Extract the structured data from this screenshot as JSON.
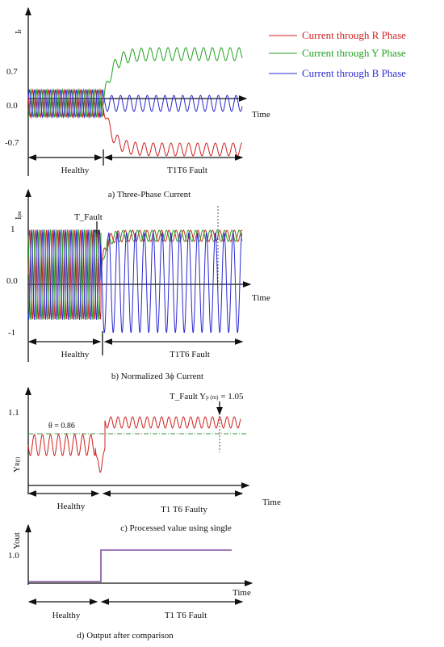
{
  "legend": [
    "Current through R Phase",
    "Current through Y Phase",
    "Current through B Phase"
  ],
  "panels": [
    {
      "y_label": "I",
      "y_label_sub": "r",
      "y_ticks": [
        "0.7",
        "0.0",
        "-0.7"
      ],
      "x_label": "Time",
      "healthy": "Healthy",
      "fault": "T1T6 Fault",
      "caption": "a) Three-Phase Current"
    },
    {
      "y_label": "I",
      "y_label_sub": "pu",
      "y_ticks": [
        "1",
        "0.0",
        "-1"
      ],
      "x_label": "Time",
      "marker": "T_Fault",
      "healthy": "Healthy",
      "fault": "T1T6 Fault",
      "caption": "b) Normalized 3ϕ Current"
    },
    {
      "y_label": "Y",
      "y_label_sub": "R(t)",
      "y_ticks": [
        "1.1"
      ],
      "threshold": "θ = 0.86",
      "marker": "T_Fault Y",
      "marker_sub": "p (m)",
      "marker_value": " = 1.05",
      "x_label": "Time",
      "healthy": "Healthy",
      "fault": "T1 T6 Faulty",
      "caption": "c) Processed value using single"
    },
    {
      "y_label": "Yout",
      "y_ticks": [
        "1.0"
      ],
      "x_label": "Time",
      "healthy": "Healthy",
      "fault": "T1 T6 Fault",
      "caption": "d)   Output   after   comparison"
    }
  ]
}
